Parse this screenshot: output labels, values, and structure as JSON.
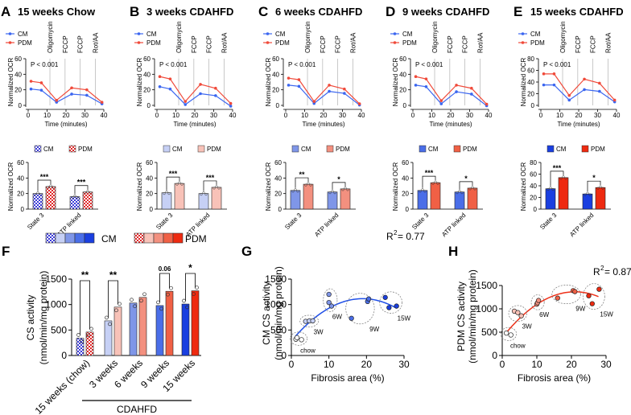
{
  "colors": {
    "cm_line": "#3b66f0",
    "pdm_line": "#f04a3a",
    "cm_shades": [
      "#3a3ad8",
      "#c6d0f5",
      "#7f96e8",
      "#4a6ee8",
      "#1a3fe0"
    ],
    "pdm_shades": [
      "#e02828",
      "#f8c2b8",
      "#f3907f",
      "#f06045",
      "#ee2a10"
    ]
  },
  "chart_data": [
    {
      "panel": "A",
      "type": "line",
      "title": "15 weeks Chow",
      "ylabel": "Normalized OCR",
      "xlabel": "Time (minutes)",
      "xlim": [
        0,
        40
      ],
      "ylim": [
        0,
        60
      ],
      "yticks": [
        0,
        20,
        40,
        60
      ],
      "xticks": [
        0,
        10,
        20,
        30,
        40
      ],
      "legend": [
        "CM",
        "PDM"
      ],
      "injections": [
        "Oligomycin",
        "FCCP",
        "FCCP",
        "Rot/AA"
      ],
      "annotation": "P < 0.001",
      "x": [
        1.5,
        7,
        15,
        23,
        31,
        39
      ],
      "series": [
        {
          "name": "CM",
          "values": [
            21,
            19.5,
            4,
            14.5,
            13,
            2
          ]
        },
        {
          "name": "PDM",
          "values": [
            31,
            29,
            6.5,
            22.5,
            20,
            4
          ]
        }
      ],
      "bars": {
        "categories": [
          "State 3",
          "ATP linked"
        ],
        "ylim": [
          0,
          60
        ],
        "yticks": [
          0,
          20,
          40,
          60
        ],
        "CM": [
          20,
          16
        ],
        "PDM": [
          29,
          22
        ],
        "sig": [
          "***",
          "***"
        ]
      }
    },
    {
      "panel": "B",
      "type": "line",
      "title": "3 weeks CDAHFD",
      "ylabel": "Normalized OCR",
      "xlabel": "Time (minutes)",
      "xlim": [
        0,
        40
      ],
      "ylim": [
        0,
        60
      ],
      "yticks": [
        0,
        20,
        40,
        60
      ],
      "xticks": [
        0,
        10,
        20,
        30,
        40
      ],
      "legend": [
        "CM",
        "PDM"
      ],
      "injections": [
        "Oligomycin",
        "FCCP",
        "FCCP",
        "Rot/AA"
      ],
      "annotation": "P < 0.001",
      "x": [
        1.5,
        7,
        15,
        23,
        31,
        39
      ],
      "series": [
        {
          "name": "CM",
          "values": [
            24,
            21,
            1,
            15,
            12.5,
            -1
          ]
        },
        {
          "name": "PDM",
          "values": [
            37,
            34,
            5,
            27,
            22,
            2.5
          ]
        }
      ],
      "bars": {
        "categories": [
          "State 3",
          "ATP linked"
        ],
        "ylim": [
          0,
          60
        ],
        "yticks": [
          0,
          20,
          40,
          60
        ],
        "CM": [
          21,
          20
        ],
        "PDM": [
          33,
          28
        ],
        "sig": [
          "***",
          "***"
        ]
      }
    },
    {
      "panel": "C",
      "type": "line",
      "title": "6 weeks CDAHFD",
      "ylabel": "Normalized OCR",
      "xlabel": "Time (minutes)",
      "xlim": [
        0,
        40
      ],
      "ylim": [
        0,
        60
      ],
      "yticks": [
        0,
        20,
        40,
        60
      ],
      "xticks": [
        0,
        10,
        20,
        30,
        40
      ],
      "legend": [
        "CM",
        "PDM"
      ],
      "injections": [
        "Oligomycin",
        "FCCP",
        "FCCP",
        "Rot/AA"
      ],
      "annotation": "P < 0.001",
      "x": [
        1.5,
        7,
        15,
        23,
        31,
        39
      ],
      "series": [
        {
          "name": "CM",
          "values": [
            26,
            24.5,
            2.5,
            18,
            15.5,
            0.5
          ]
        },
        {
          "name": "PDM",
          "values": [
            35,
            33,
            5,
            26,
            21,
            2
          ]
        }
      ],
      "bars": {
        "categories": [
          "State 3",
          "ATP linked"
        ],
        "ylim": [
          0,
          60
        ],
        "yticks": [
          0,
          20,
          40,
          60
        ],
        "CM": [
          24,
          22
        ],
        "PDM": [
          32,
          26
        ],
        "sig": [
          "**",
          "*"
        ]
      }
    },
    {
      "panel": "D",
      "type": "line",
      "title": "9 weeks CDAHFD",
      "ylabel": "Normalized OCR",
      "xlabel": "Time (minutes)",
      "xlim": [
        0,
        40
      ],
      "ylim": [
        0,
        60
      ],
      "yticks": [
        0,
        20,
        40,
        60
      ],
      "xticks": [
        0,
        10,
        20,
        30,
        40
      ],
      "legend": [
        "CM",
        "PDM"
      ],
      "injections": [
        "Oligomycin",
        "FCCP",
        "FCCP",
        "Rot/AA"
      ],
      "annotation": "P < 0.001",
      "x": [
        1.5,
        7,
        15,
        23,
        31,
        39
      ],
      "series": [
        {
          "name": "CM",
          "values": [
            26,
            24,
            2,
            17.5,
            14.5,
            -0.5
          ]
        },
        {
          "name": "PDM",
          "values": [
            37,
            34,
            6,
            26,
            22,
            1.5
          ]
        }
      ],
      "bars": {
        "categories": [
          "State 3",
          "ATP linked"
        ],
        "ylim": [
          0,
          60
        ],
        "yticks": [
          0,
          20,
          40,
          60
        ],
        "CM": [
          24,
          22
        ],
        "PDM": [
          34,
          27
        ],
        "sig": [
          "***",
          "*"
        ]
      }
    },
    {
      "panel": "E",
      "type": "line",
      "title": "15 weeks CDAHFD",
      "ylabel": "Normalized OCR",
      "xlabel": "Time (minutes)",
      "xlim": [
        0,
        40
      ],
      "ylim": [
        0,
        80
      ],
      "yticks": [
        0,
        20,
        40,
        60,
        80
      ],
      "xticks": [
        0,
        10,
        20,
        30,
        40
      ],
      "legend": [
        "CM",
        "PDM"
      ],
      "injections": [
        "Oligomycin",
        "FCCP",
        "FCCP",
        "Rot/AA"
      ],
      "annotation": "P < 0.001",
      "x": [
        1.5,
        7,
        15,
        23,
        31,
        39
      ],
      "series": [
        {
          "name": "CM",
          "values": [
            35,
            35,
            9,
            27,
            24,
            6
          ]
        },
        {
          "name": "PDM",
          "values": [
            54,
            54,
            17,
            45,
            38,
            9
          ]
        }
      ],
      "bars": {
        "categories": [
          "State 3",
          "ATP linked"
        ],
        "ylim": [
          0,
          80
        ],
        "yticks": [
          0,
          20,
          40,
          60,
          80
        ],
        "CM": [
          35,
          26
        ],
        "PDM": [
          54,
          37
        ],
        "sig": [
          "***",
          "*"
        ]
      }
    },
    {
      "panel": "F",
      "type": "bar",
      "ylabel": [
        "CS activity",
        "(nmol/min/mg protein)"
      ],
      "ylim": [
        0,
        1500
      ],
      "yticks": [
        0,
        500,
        1000,
        1500
      ],
      "categories": [
        "15 weeks (chow)",
        "3 weeks",
        "6 weeks",
        "9 weeks",
        "15 weeks"
      ],
      "group_label": "CDAHFD",
      "legend": [
        "CM",
        "PDM"
      ],
      "series": [
        {
          "name": "CM",
          "values": [
            340,
            680,
            1030,
            980,
            1010
          ]
        },
        {
          "name": "PDM",
          "values": [
            460,
            950,
            1140,
            1260,
            1270
          ]
        }
      ],
      "sig": [
        "**",
        "**",
        "",
        "0.06",
        "*"
      ]
    },
    {
      "panel": "G",
      "type": "scatter",
      "ylabel": [
        "CM CS activity",
        "(nmol/min/mg protein)"
      ],
      "xlabel": "Fibrosis area (%)",
      "xlim": [
        0,
        30
      ],
      "ylim": [
        0,
        1500
      ],
      "xticks": [
        0,
        10,
        20,
        30
      ],
      "yticks": [
        0,
        500,
        1000,
        1500
      ],
      "r2": "R",
      "r2_sup": "2",
      "r2_value": " = 0.77",
      "fit": {
        "type": "quadratic",
        "vertex_x": 19,
        "vertex_y": 1115,
        "k": 2.3,
        "x_range": [
          1,
          28
        ]
      },
      "groups": [
        {
          "label": "chow",
          "points": [
            [
              1.2,
              320
            ],
            [
              1.5,
              350
            ],
            [
              2.7,
              310
            ]
          ]
        },
        {
          "label": "3W",
          "points": [
            [
              3.8,
              670
            ],
            [
              4.8,
              680
            ],
            [
              5.7,
              680
            ]
          ]
        },
        {
          "label": "6W",
          "points": [
            [
              10,
              1200
            ],
            [
              10,
              1040
            ],
            [
              10.7,
              970
            ]
          ]
        },
        {
          "label": "9W",
          "points": [
            [
              16,
              730
            ],
            [
              20.3,
              1060
            ],
            [
              20.6,
              1110
            ]
          ]
        },
        {
          "label": "15W",
          "points": [
            [
              25,
              1140
            ],
            [
              26,
              940
            ],
            [
              28,
              970
            ]
          ]
        }
      ]
    },
    {
      "panel": "H",
      "type": "scatter",
      "ylabel": [
        "PDM CS activity",
        "(nmol/min/mg protein)"
      ],
      "xlabel": "Fibrosis area (%)",
      "xlim": [
        0,
        30
      ],
      "ylim": [
        0,
        1500
      ],
      "xticks": [
        0,
        10,
        20,
        30
      ],
      "yticks": [
        0,
        500,
        1000,
        1500
      ],
      "r2": "R",
      "r2_sup": "2",
      "r2_value": " = 0.87",
      "fit": {
        "type": "quadratic",
        "vertex_x": 21,
        "vertex_y": 1365,
        "k": 2.23,
        "x_range": [
          1.3,
          28
        ]
      },
      "groups": [
        {
          "label": "chow",
          "points": [
            [
              1.2,
              480
            ],
            [
              2.5,
              440
            ]
          ]
        },
        {
          "label": "3W",
          "points": [
            [
              3.5,
              950
            ],
            [
              4.5,
              920
            ],
            [
              5.5,
              850
            ]
          ]
        },
        {
          "label": "6W",
          "points": [
            [
              10,
              1100
            ],
            [
              10.2,
              1130
            ],
            [
              10.5,
              1180
            ]
          ]
        },
        {
          "label": "9W",
          "points": [
            [
              16,
              1230
            ],
            [
              20.5,
              1390
            ],
            [
              21,
              1370
            ]
          ]
        },
        {
          "label": "15W",
          "points": [
            [
              25,
              1280
            ],
            [
              26,
              1110
            ],
            [
              28,
              1420
            ]
          ]
        }
      ]
    }
  ]
}
